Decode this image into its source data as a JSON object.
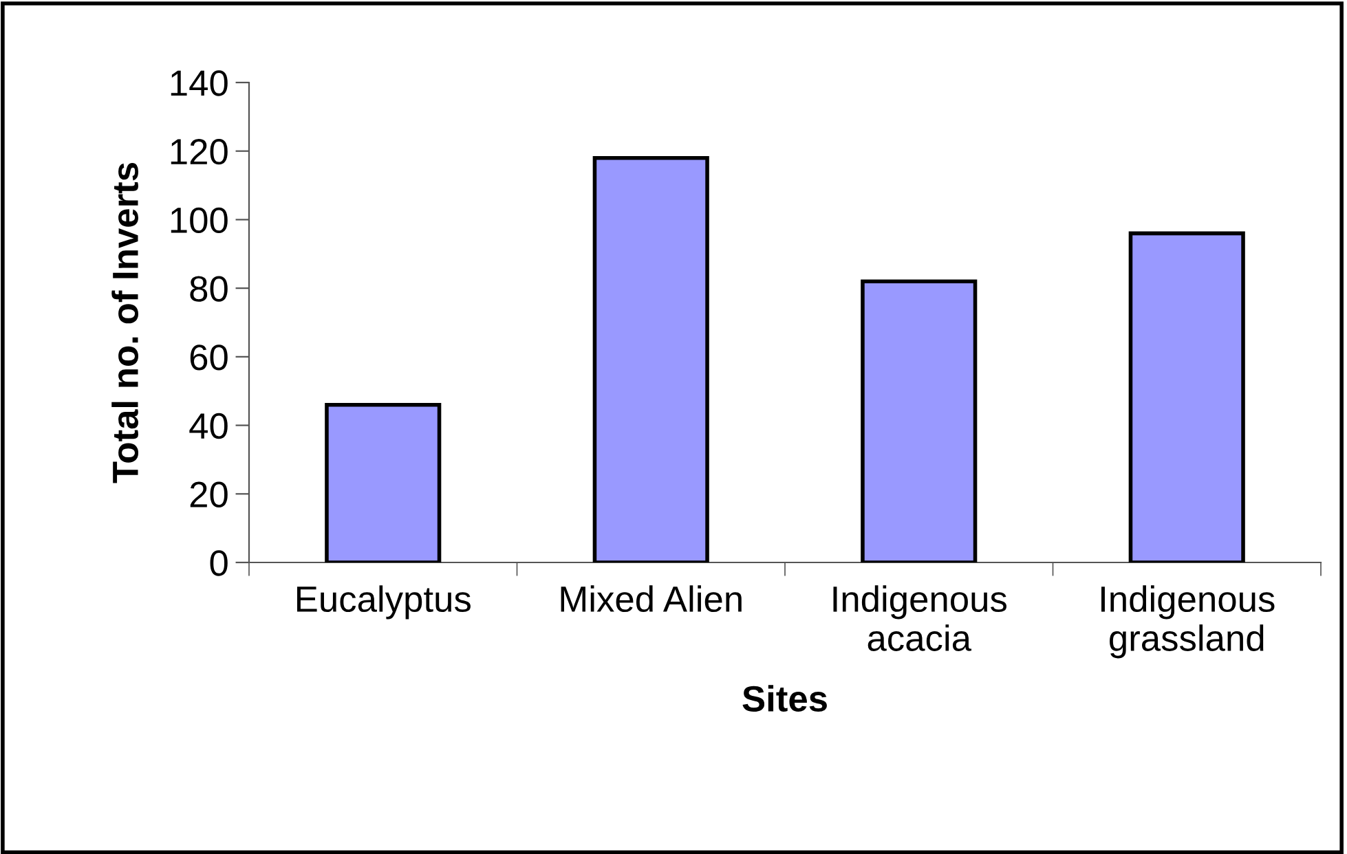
{
  "chart_data": {
    "type": "bar",
    "xlabel": "Sites",
    "ylabel": "Total no. of Inverts",
    "categories": [
      "Eucalyptus",
      "Mixed Alien",
      "Indigenous\nacacia",
      "Indigenous\ngrassland"
    ],
    "values": [
      46,
      118,
      82,
      96
    ],
    "color": "#9999ff",
    "ylim": [
      0,
      140
    ],
    "yticks": [
      0,
      20,
      40,
      60,
      80,
      100,
      120,
      140
    ],
    "grid": false,
    "legend": false
  }
}
